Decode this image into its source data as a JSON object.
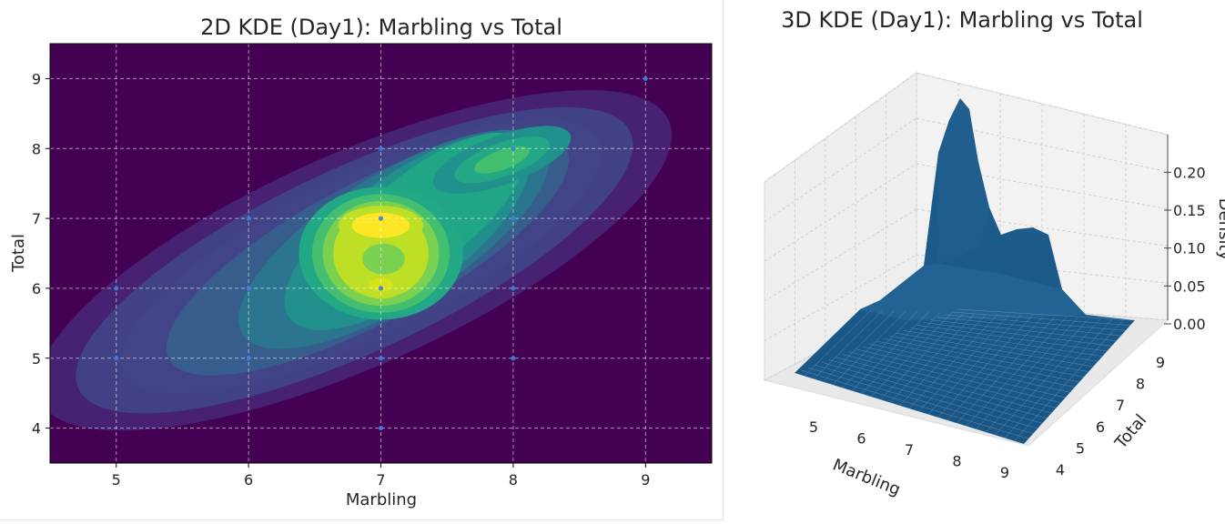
{
  "chart_data": [
    {
      "type": "heatmap",
      "subtype": "kde-2d-filled-contour",
      "title": "2D KDE (Day1): Marbling vs Total",
      "xlabel": "Marbling",
      "ylabel": "Total",
      "xlim": [
        4.5,
        9.5
      ],
      "ylim": [
        3.5,
        9.5
      ],
      "xticks": [
        5,
        6,
        7,
        8,
        9
      ],
      "yticks": [
        4,
        5,
        6,
        7,
        8,
        9
      ],
      "grid": true,
      "colormap": "viridis",
      "points": [
        {
          "x": 5,
          "y": 6
        },
        {
          "x": 5,
          "y": 5
        },
        {
          "x": 6,
          "y": 7
        },
        {
          "x": 6,
          "y": 6
        },
        {
          "x": 6,
          "y": 5
        },
        {
          "x": 7,
          "y": 7
        },
        {
          "x": 7,
          "y": 6
        },
        {
          "x": 7,
          "y": 5
        },
        {
          "x": 7,
          "y": 4
        },
        {
          "x": 7,
          "y": 8
        },
        {
          "x": 8,
          "y": 8
        },
        {
          "x": 8,
          "y": 7
        },
        {
          "x": 8,
          "y": 6
        },
        {
          "x": 8,
          "y": 5
        },
        {
          "x": 9,
          "y": 9
        }
      ],
      "peaks": [
        {
          "x": 7.0,
          "y": 6.9,
          "level": 1.0
        },
        {
          "x": 7.0,
          "y": 6.05,
          "level": 0.85
        },
        {
          "x": 8.0,
          "y": 7.95,
          "level": 0.62
        }
      ]
    },
    {
      "type": "surface",
      "subtype": "kde-3d-surface",
      "title": "3D KDE (Day1): Marbling vs Total",
      "xlabel": "Marbling",
      "ylabel": "Total",
      "zlabel": "Density",
      "xticks": [
        5,
        6,
        7,
        8,
        9
      ],
      "yticks": [
        4,
        5,
        6,
        7,
        8,
        9
      ],
      "zticks": [
        "0.00",
        "0.05",
        "0.10",
        "0.15",
        "0.20"
      ],
      "zlim": [
        0,
        0.24
      ],
      "peak_density": 0.22,
      "surface_color": "#1f5a8a"
    }
  ],
  "colors": {
    "viridis_low": "#440154",
    "viridis_mid": "#21918c",
    "viridis_high": "#fde725",
    "point": "#3b7dd8"
  }
}
